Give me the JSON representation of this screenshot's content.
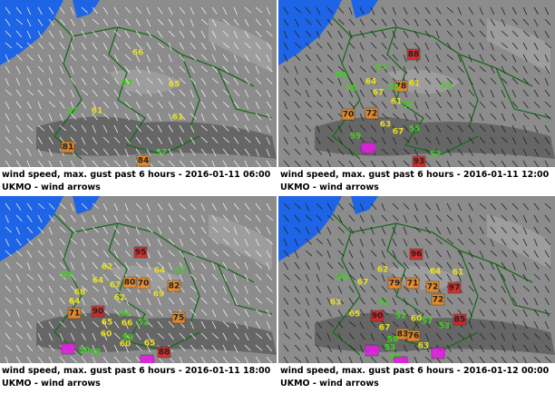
{
  "panels": [
    {
      "caption": "wind speed, max. gust past 6 hours - 2016-01-11 06:00",
      "source": "UKMO - wind arrows",
      "labels": [
        66,
        57,
        65,
        57,
        61,
        61,
        81,
        57,
        84
      ]
    },
    {
      "caption": "wind speed, max. gust past 6 hours - 2016-01-11 12:00",
      "source": "UKMO - wind arrows",
      "labels": [
        88,
        57,
        59,
        64,
        78,
        61,
        59,
        67,
        55,
        56,
        61,
        57,
        70,
        72,
        63,
        67,
        59,
        55,
        103,
        53,
        93
      ]
    },
    {
      "caption": "wind speed, max. gust past 6 hours - 2016-01-11 18:00",
      "source": "UKMO - wind arrows",
      "labels": [
        95,
        62,
        64,
        53,
        59,
        64,
        67,
        80,
        70,
        82,
        68,
        69,
        62,
        64,
        71,
        90,
        56,
        65,
        66,
        52,
        75,
        60,
        59,
        112,
        50,
        58,
        60,
        65,
        106,
        88
      ]
    },
    {
      "caption": "wind speed, max. gust past 6 hours - 2016-01-12 00:00",
      "source": "UKMO - wind arrows",
      "labels": [
        96,
        62,
        64,
        61,
        59,
        67,
        79,
        71,
        72,
        97,
        63,
        51,
        72,
        65,
        90,
        52,
        60,
        57,
        53,
        85,
        67,
        83,
        76,
        58,
        103,
        53,
        63,
        58,
        104,
        112
      ]
    }
  ]
}
